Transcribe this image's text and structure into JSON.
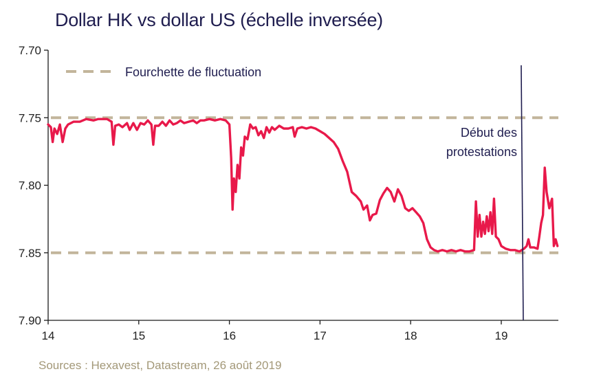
{
  "title": "Dollar HK vs dollar US (échelle inversée)",
  "source": "Sources : Hexavest, Datastream, 26 août  2019",
  "chart_data": {
    "type": "line",
    "title": "Dollar HK vs dollar US (échelle inversée)",
    "xlabel": "",
    "ylabel": "",
    "xlim": [
      14,
      19.63
    ],
    "ylim": [
      7.7,
      7.9
    ],
    "y_inverted": true,
    "x_ticks": [
      14,
      15,
      16,
      17,
      18,
      19
    ],
    "x_tick_labels": [
      "14",
      "15",
      "16",
      "17",
      "18",
      "19"
    ],
    "y_ticks": [
      7.7,
      7.75,
      7.8,
      7.85,
      7.9
    ],
    "y_tick_labels": [
      "7.70",
      "7.75",
      "7.80",
      "7.85",
      "7.90"
    ],
    "grid": false,
    "legend": {
      "placement": "top-left",
      "entry": "Fourchette de fluctuation"
    },
    "colors": {
      "series": "#e8194a",
      "band": "#c2b59b",
      "marker": "#1f1d4f",
      "axis": "#1a1a1a"
    },
    "band": {
      "name": "Fourchette de fluctuation",
      "lower": 7.75,
      "upper": 7.85
    },
    "vertical_marker": {
      "x": 19.22,
      "label_lines": [
        "Début des",
        "protestations"
      ]
    },
    "series": [
      {
        "values": [
          [
            14.0,
            7.755
          ],
          [
            14.03,
            7.757
          ],
          [
            14.05,
            7.768
          ],
          [
            14.07,
            7.758
          ],
          [
            14.1,
            7.762
          ],
          [
            14.13,
            7.755
          ],
          [
            14.16,
            7.768
          ],
          [
            14.19,
            7.758
          ],
          [
            14.22,
            7.755
          ],
          [
            14.28,
            7.753
          ],
          [
            14.35,
            7.753
          ],
          [
            14.42,
            7.751
          ],
          [
            14.5,
            7.752
          ],
          [
            14.55,
            7.751
          ],
          [
            14.6,
            7.751
          ],
          [
            14.65,
            7.751
          ],
          [
            14.7,
            7.753
          ],
          [
            14.72,
            7.77
          ],
          [
            14.74,
            7.756
          ],
          [
            14.78,
            7.755
          ],
          [
            14.82,
            7.757
          ],
          [
            14.87,
            7.754
          ],
          [
            14.9,
            7.759
          ],
          [
            14.94,
            7.754
          ],
          [
            14.98,
            7.759
          ],
          [
            15.02,
            7.754
          ],
          [
            15.06,
            7.755
          ],
          [
            15.1,
            7.752
          ],
          [
            15.14,
            7.755
          ],
          [
            15.16,
            7.77
          ],
          [
            15.18,
            7.756
          ],
          [
            15.22,
            7.756
          ],
          [
            15.26,
            7.753
          ],
          [
            15.3,
            7.756
          ],
          [
            15.34,
            7.752
          ],
          [
            15.38,
            7.755
          ],
          [
            15.42,
            7.754
          ],
          [
            15.46,
            7.752
          ],
          [
            15.5,
            7.754
          ],
          [
            15.55,
            7.753
          ],
          [
            15.6,
            7.752
          ],
          [
            15.64,
            7.754
          ],
          [
            15.68,
            7.752
          ],
          [
            15.72,
            7.752
          ],
          [
            15.78,
            7.751
          ],
          [
            15.84,
            7.752
          ],
          [
            15.9,
            7.751
          ],
          [
            15.96,
            7.752
          ],
          [
            16.0,
            7.755
          ],
          [
            16.02,
            7.78
          ],
          [
            16.035,
            7.818
          ],
          [
            16.05,
            7.795
          ],
          [
            16.07,
            7.805
          ],
          [
            16.09,
            7.785
          ],
          [
            16.11,
            7.795
          ],
          [
            16.13,
            7.772
          ],
          [
            16.15,
            7.778
          ],
          [
            16.17,
            7.764
          ],
          [
            16.2,
            7.766
          ],
          [
            16.23,
            7.755
          ],
          [
            16.26,
            7.758
          ],
          [
            16.29,
            7.757
          ],
          [
            16.32,
            7.763
          ],
          [
            16.35,
            7.76
          ],
          [
            16.38,
            7.765
          ],
          [
            16.41,
            7.757
          ],
          [
            16.44,
            7.761
          ],
          [
            16.47,
            7.757
          ],
          [
            16.5,
            7.759
          ],
          [
            16.55,
            7.756
          ],
          [
            16.6,
            7.758
          ],
          [
            16.65,
            7.758
          ],
          [
            16.7,
            7.757
          ],
          [
            16.72,
            7.764
          ],
          [
            16.75,
            7.758
          ],
          [
            16.8,
            7.757
          ],
          [
            16.85,
            7.758
          ],
          [
            16.9,
            7.757
          ],
          [
            16.95,
            7.758
          ],
          [
            17.0,
            7.76
          ],
          [
            17.05,
            7.762
          ],
          [
            17.1,
            7.765
          ],
          [
            17.15,
            7.768
          ],
          [
            17.2,
            7.773
          ],
          [
            17.25,
            7.782
          ],
          [
            17.3,
            7.79
          ],
          [
            17.35,
            7.805
          ],
          [
            17.4,
            7.808
          ],
          [
            17.45,
            7.812
          ],
          [
            17.48,
            7.818
          ],
          [
            17.52,
            7.815
          ],
          [
            17.55,
            7.826
          ],
          [
            17.58,
            7.822
          ],
          [
            17.62,
            7.821
          ],
          [
            17.66,
            7.811
          ],
          [
            17.7,
            7.806
          ],
          [
            17.74,
            7.802
          ],
          [
            17.78,
            7.805
          ],
          [
            17.82,
            7.812
          ],
          [
            17.86,
            7.803
          ],
          [
            17.9,
            7.808
          ],
          [
            17.94,
            7.817
          ],
          [
            17.98,
            7.819
          ],
          [
            18.02,
            7.817
          ],
          [
            18.06,
            7.82
          ],
          [
            18.1,
            7.823
          ],
          [
            18.14,
            7.828
          ],
          [
            18.18,
            7.84
          ],
          [
            18.22,
            7.846
          ],
          [
            18.26,
            7.848
          ],
          [
            18.3,
            7.849
          ],
          [
            18.35,
            7.848
          ],
          [
            18.4,
            7.849
          ],
          [
            18.45,
            7.848
          ],
          [
            18.5,
            7.849
          ],
          [
            18.55,
            7.848
          ],
          [
            18.6,
            7.849
          ],
          [
            18.65,
            7.849
          ],
          [
            18.7,
            7.848
          ],
          [
            18.72,
            7.812
          ],
          [
            18.74,
            7.838
          ],
          [
            18.76,
            7.822
          ],
          [
            18.78,
            7.838
          ],
          [
            18.8,
            7.827
          ],
          [
            18.82,
            7.836
          ],
          [
            18.84,
            7.823
          ],
          [
            18.86,
            7.834
          ],
          [
            18.88,
            7.82
          ],
          [
            18.9,
            7.836
          ],
          [
            18.92,
            7.81
          ],
          [
            18.94,
            7.838
          ],
          [
            18.97,
            7.84
          ],
          [
            19.0,
            7.845
          ],
          [
            19.05,
            7.847
          ],
          [
            19.1,
            7.848
          ],
          [
            19.15,
            7.848
          ],
          [
            19.2,
            7.849
          ],
          [
            19.25,
            7.847
          ],
          [
            19.28,
            7.845
          ],
          [
            19.3,
            7.84
          ],
          [
            19.32,
            7.846
          ],
          [
            19.36,
            7.846
          ],
          [
            19.4,
            7.847
          ],
          [
            19.42,
            7.838
          ],
          [
            19.44,
            7.828
          ],
          [
            19.46,
            7.822
          ],
          [
            19.48,
            7.787
          ],
          [
            19.5,
            7.805
          ],
          [
            19.53,
            7.817
          ],
          [
            19.56,
            7.81
          ],
          [
            19.58,
            7.845
          ],
          [
            19.6,
            7.84
          ],
          [
            19.62,
            7.845
          ]
        ]
      }
    ]
  }
}
